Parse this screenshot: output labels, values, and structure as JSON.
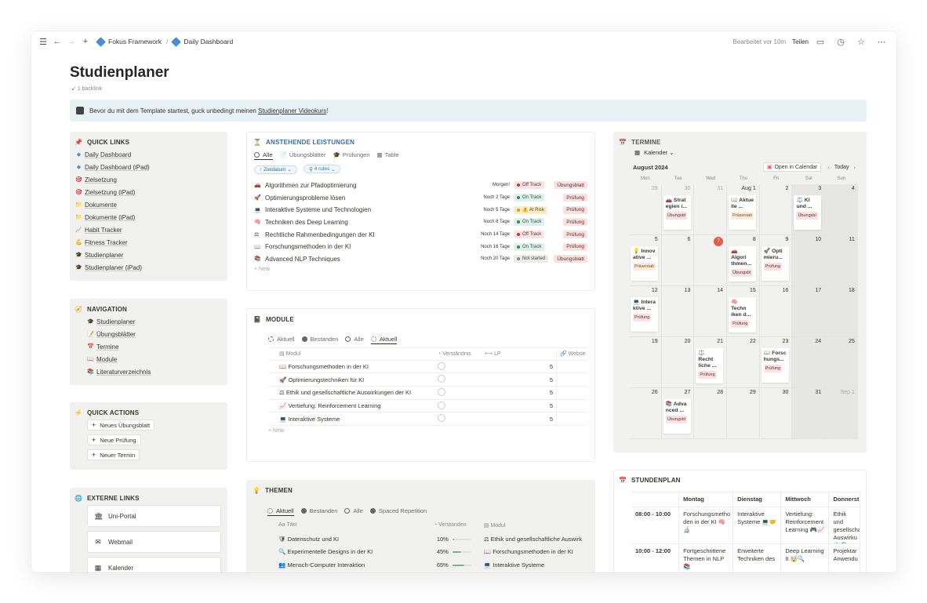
{
  "topbar": {
    "breadcrumb": [
      "Fokus Framework",
      "Daily Dashboard"
    ],
    "edited": "Bearbeitet vor 10m",
    "share": "Teilen"
  },
  "page": {
    "title": "Studienplaner",
    "backlink": "1 backlink"
  },
  "callout": {
    "prefix": "Bevor du mit dem Template startest, guck unbedingt meinen ",
    "link": "Studienplaner Videokurs",
    "suffix": "!"
  },
  "quicklinks": {
    "title": "QUICK LINKS",
    "items": [
      {
        "label": "Daily Dashboard",
        "icon": "diamond-icon"
      },
      {
        "label": "Daily Dashboard (iPad)",
        "icon": "diamond-icon"
      },
      {
        "label": "Zielsetzung",
        "icon": "target-icon"
      },
      {
        "label": "Zielsetzung (iPad)",
        "icon": "target-icon"
      },
      {
        "label": "Dokumente",
        "icon": "folder-icon"
      },
      {
        "label": "Dokumente (iPad)",
        "icon": "folder-icon"
      },
      {
        "label": "Habit Tracker",
        "icon": "chart-icon"
      },
      {
        "label": "Fitness Tracker",
        "icon": "muscle-icon"
      },
      {
        "label": "Studienplaner",
        "icon": "grad-cap-icon"
      },
      {
        "label": "Studienplaner (iPad)",
        "icon": "grad-cap-icon"
      }
    ]
  },
  "navigation": {
    "title": "NAVIGATION",
    "items": [
      {
        "label": "Studienplaner",
        "icon": "grad-cap-icon"
      },
      {
        "label": "Übungsblätter",
        "icon": "pencil-icon"
      },
      {
        "label": "Termine",
        "icon": "calendar-icon"
      },
      {
        "label": "Module",
        "icon": "book-icon"
      },
      {
        "label": "Literaturverzeichnis",
        "icon": "books-icon"
      }
    ]
  },
  "quickactions": {
    "title": "QUICK ACTIONS",
    "items": [
      "Neues Übungsblatt",
      "Neue Prüfung",
      "Neuer Termin"
    ]
  },
  "external": {
    "title": "EXTERNE LINKS",
    "items": [
      "Uni-Portal",
      "Webmail",
      "Kalender"
    ]
  },
  "leistungen": {
    "title": "ANSTEHENDE LEISTUNGEN",
    "tabs": [
      "Alle",
      "Übungsblätter",
      "Prüfungen",
      "Table"
    ],
    "filters": [
      "Zieldatum",
      "4 rules"
    ],
    "rows": [
      {
        "title": "Algorithmen zur Pfadoptimierung",
        "icon": "car-icon",
        "due": "Morgen!",
        "status": "Off Track",
        "type": "Übungsblatt"
      },
      {
        "title": "Optimierungsprobleme lösen",
        "icon": "rocket-icon",
        "due": "Noch 2 Tage",
        "status": "On Track",
        "type": "Prüfung"
      },
      {
        "title": "Interaktive Systeme und Technologien",
        "icon": "monitor-icon",
        "due": "Noch 5 Tage",
        "status": "⚠️ At Risk",
        "type": "Prüfung"
      },
      {
        "title": "Techniken des Deep Learning",
        "icon": "brain-icon",
        "due": "Noch 8 Tage",
        "status": "On Track",
        "type": "Prüfung"
      },
      {
        "title": "Rechtliche Rahmenbedingungen der KI",
        "icon": "scale-icon",
        "due": "Noch 14 Tage",
        "status": "Off Track",
        "type": "Prüfung"
      },
      {
        "title": "Forschungsmethoden in der KI",
        "icon": "book-icon",
        "due": "Noch 16 Tage",
        "status": "On Track",
        "type": "Prüfung"
      },
      {
        "title": "Advanced NLP Techniques",
        "icon": "books-icon",
        "due": "Noch 20 Tage",
        "status": "Not started",
        "type": "Übungsblatt"
      }
    ],
    "new": "New"
  },
  "module": {
    "title": "MODULE",
    "tabs": [
      "Aktuell",
      "Bestanden",
      "Alle",
      "Aktuell"
    ],
    "columns": [
      "Modul",
      "Verständnis",
      "LP",
      "Webse"
    ],
    "rows": [
      {
        "name": "Forschungsmethoden in der KI",
        "lp": "5"
      },
      {
        "name": "Optimierungstechniken für KI",
        "lp": "5"
      },
      {
        "name": "Ethik und gesellschaftliche Auswirkungen der KI",
        "lp": "5"
      },
      {
        "name": "Vertiefung: Reinforcement Learning",
        "lp": "5"
      },
      {
        "name": "Interaktive Systeme",
        "lp": "5"
      }
    ],
    "new": "New"
  },
  "themen": {
    "title": "THEMEN",
    "tabs": [
      "Aktuell",
      "Bestanden",
      "Alle",
      "Spaced Repetition"
    ],
    "columns": [
      "Titel",
      "Verstanden",
      "Modul"
    ],
    "rows": [
      {
        "title": "Datenschutz und KI",
        "pct": "10%",
        "modul": "Ethik und gesellschaftliche Auswirk",
        "fill": 0.1
      },
      {
        "title": "Experimentelle Designs in der KI",
        "pct": "45%",
        "modul": "Forschungsmethoden in der KI",
        "fill": 0.45
      },
      {
        "title": "Mensch-Computer Interaktion",
        "pct": "65%",
        "modul": "Interaktive Systeme",
        "fill": 0.65
      }
    ]
  },
  "termine": {
    "title": "TERMINE",
    "view": "Kalender",
    "month": "August 2024",
    "open": "Open in Calendar",
    "today": "Today",
    "dow": [
      "Mon",
      "Tue",
      "Wed",
      "Thu",
      "Fri",
      "Sat",
      "Sun"
    ],
    "weeks": [
      [
        "29",
        "30",
        "31",
        "Aug 1",
        "2",
        "3",
        "4"
      ],
      [
        "5",
        "6",
        "7",
        "8",
        "9",
        "10",
        "11"
      ],
      [
        "12",
        "13",
        "14",
        "15",
        "16",
        "17",
        "18"
      ],
      [
        "19",
        "20",
        "21",
        "22",
        "23",
        "24",
        "25"
      ],
      [
        "26",
        "27",
        "28",
        "29",
        "30",
        "31",
        "Sep 1"
      ]
    ],
    "events": [
      {
        "w": 0,
        "d": 1,
        "title": "🚗 Strat egien i...",
        "tag": "Übungsbl",
        "kind": "ub"
      },
      {
        "w": 0,
        "d": 3,
        "title": "📖 Aktue lle ...",
        "tag": "Präsentati",
        "kind": "pr"
      },
      {
        "w": 0,
        "d": 5,
        "title": "⚖️ KI und ...",
        "tag": "Übungsbl",
        "kind": "ub"
      },
      {
        "w": 1,
        "d": 0,
        "title": "💡 Innov ative ...",
        "tag": "Präsentati",
        "kind": "pr"
      },
      {
        "w": 1,
        "d": 3,
        "title": "🚗 Algori thmen...",
        "tag": "Übungsbl",
        "kind": "ub"
      },
      {
        "w": 1,
        "d": 4,
        "title": "🚀 Opti mieru...",
        "tag": "Prüfung",
        "kind": "ub"
      },
      {
        "w": 2,
        "d": 0,
        "title": "💻 Intera ktive ...",
        "tag": "Prüfung",
        "kind": "ub"
      },
      {
        "w": 2,
        "d": 3,
        "title": "🧠 Techn iken d...",
        "tag": "Prüfung",
        "kind": "ub"
      },
      {
        "w": 3,
        "d": 2,
        "title": "⚖️ Recht liche ...",
        "tag": "Prüfung",
        "kind": "ub"
      },
      {
        "w": 3,
        "d": 4,
        "title": "📖 Forsc hungs...",
        "tag": "Prüfung",
        "kind": "ub"
      },
      {
        "w": 4,
        "d": 1,
        "title": "📚 Adva nced ...",
        "tag": "Übungsbl",
        "kind": "ub"
      }
    ]
  },
  "stundenplan": {
    "title": "STUNDENPLAN",
    "columns": [
      "",
      "Montag",
      "Dienstag",
      "Mittwoch",
      "Donnerst"
    ],
    "rows": [
      [
        "08:00 - 10:00",
        "Forschungsmetho den in der KI 🧠🔬",
        "Interaktive Systeme 💻🤝",
        "Vertiefung: Reinforcement Learning 🎮📈",
        "Ethik und gesellscha Auswirku ⚖️🌍"
      ],
      [
        "10:00 - 12:00",
        "Fortgeschrittene Themen in NLP 📚",
        "Erweiterte Techniken des",
        "Deep Learning II 🤯🔍",
        "Projektar Anwendu"
      ]
    ]
  },
  "colors": {
    "accent": "#2f6fb5",
    "offtrack": "#fbe4e4",
    "ontrack": "#e0f0ea",
    "atrisk": "#fdecc8",
    "notstarted": "#ececea",
    "today": "#e25b4b"
  }
}
